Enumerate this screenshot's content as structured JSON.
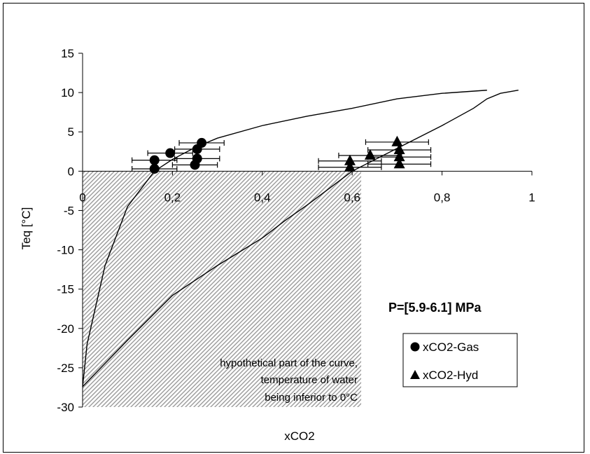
{
  "chart_data": {
    "type": "scatter",
    "xlabel": "xCO2",
    "ylabel": "Teq [°C]",
    "xlim": [
      0,
      1
    ],
    "ylim": [
      -30,
      15
    ],
    "x_ticks": [
      "0",
      "0,2",
      "0,4",
      "0,6",
      "0,8",
      "1"
    ],
    "x_tick_values": [
      0,
      0.2,
      0.4,
      0.6,
      0.8,
      1
    ],
    "y_ticks": [
      "15",
      "10",
      "5",
      "0",
      "-5",
      "-10",
      "-15",
      "-20",
      "-25",
      "-30"
    ],
    "y_tick_values": [
      15,
      10,
      5,
      0,
      -5,
      -10,
      -15,
      -20,
      -25,
      -30
    ],
    "grid": false,
    "hatched_region": {
      "x": [
        0,
        0.62
      ],
      "y": [
        -30,
        0
      ]
    },
    "annotation_lines": [
      "hypothetical part of the curve,",
      "temperature of water",
      "being inferior to 0°C"
    ],
    "pressure_label": "P=[5.9-6.1] MPa",
    "legend_placement": "bottom-right",
    "curves": [
      {
        "x": [
          0,
          0.01,
          0.05,
          0.1,
          0.16,
          0.2,
          0.25,
          0.3,
          0.4,
          0.5,
          0.6,
          0.7,
          0.8,
          0.9
        ],
        "y": [
          -27.4,
          -22,
          -12,
          -4.5,
          0,
          1.5,
          3,
          4.2,
          5.8,
          7,
          8,
          9.2,
          9.9,
          10.3
        ]
      },
      {
        "x": [
          0,
          0.1,
          0.2,
          0.3,
          0.4,
          0.45,
          0.5,
          0.6,
          0.7,
          0.8,
          0.87,
          0.9,
          0.93,
          0.97
        ],
        "y": [
          -27.4,
          -21.5,
          -15.8,
          -12,
          -8.5,
          -6.3,
          -4.3,
          0,
          2.9,
          5.8,
          8,
          9.2,
          9.9,
          10.3
        ]
      }
    ],
    "series": [
      {
        "name": "xCO2-Gas",
        "marker": "circle",
        "x": [
          0.16,
          0.16,
          0.195,
          0.25,
          0.255,
          0.255,
          0.265
        ],
        "y": [
          0.3,
          1.4,
          2.3,
          0.8,
          1.6,
          2.8,
          3.6
        ],
        "xerr": [
          0.05,
          0.05,
          0.05,
          0.05,
          0.05,
          0.05,
          0.05
        ]
      },
      {
        "name": "xCO2-Hyd",
        "marker": "triangle",
        "x": [
          0.595,
          0.595,
          0.64,
          0.7,
          0.705,
          0.705,
          0.705
        ],
        "y": [
          0.5,
          1.3,
          2.0,
          3.7,
          0.9,
          1.8,
          2.7
        ],
        "xerr": [
          0.07,
          0.07,
          0.07,
          0.07,
          0.07,
          0.07,
          0.07
        ]
      }
    ]
  }
}
